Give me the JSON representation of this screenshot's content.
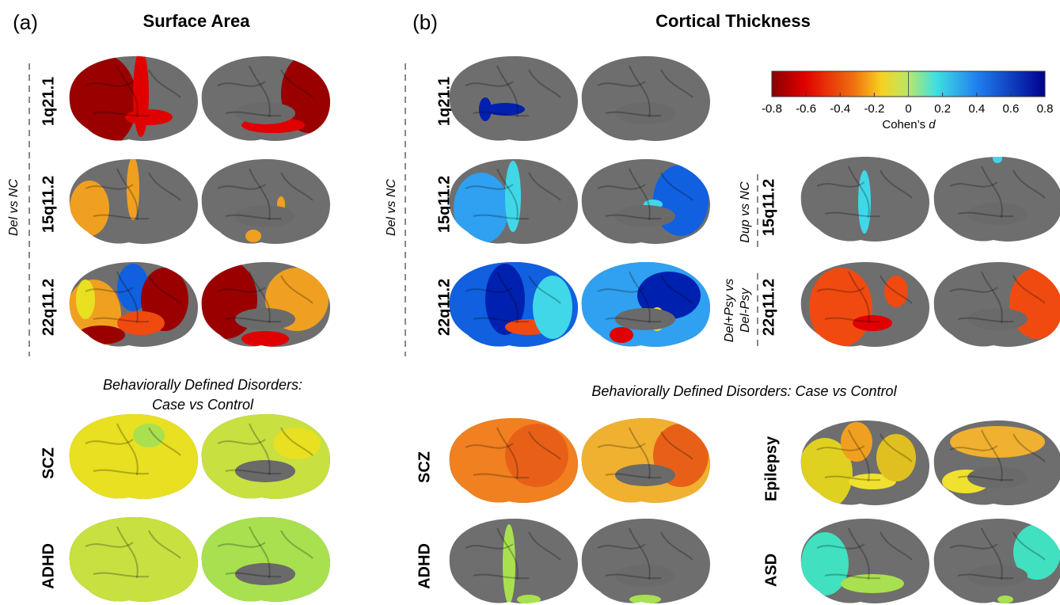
{
  "panel_a": {
    "label": "(a)",
    "title": "Surface Area",
    "group_label": "Del vs NC",
    "rows": [
      "1q21.1",
      "15q11.2",
      "22q11.2"
    ],
    "behavioral_title": [
      "Behaviorally Defined Disorders:",
      "Case vs Control"
    ],
    "behavioral_rows": [
      "SCZ",
      "ADHD"
    ]
  },
  "panel_b": {
    "label": "(b)",
    "title": "Cortical Thickness",
    "group_label": "Del vs NC",
    "rows": [
      "1q21.1",
      "15q11.2",
      "22q11.2"
    ],
    "extra": [
      {
        "group_label": [
          "Dup vs NC"
        ],
        "row": "15q11.2"
      },
      {
        "group_label": [
          "Del+Psy vs",
          "Del-Psy"
        ],
        "row": "22q11.2"
      }
    ],
    "behavioral_title": "Behaviorally Defined Disorders: Case vs Control",
    "behavioral_rows": [
      "SCZ",
      "ADHD",
      "Epilepsy",
      "ASD"
    ]
  },
  "colorbar": {
    "lim": [
      -0.8,
      0.8
    ],
    "ticks": [
      -0.8,
      -0.6,
      -0.4,
      -0.2,
      0,
      0.2,
      0.4,
      0.6,
      0.8
    ],
    "label": "Cohen’s",
    "label_symbol": "d"
  }
}
